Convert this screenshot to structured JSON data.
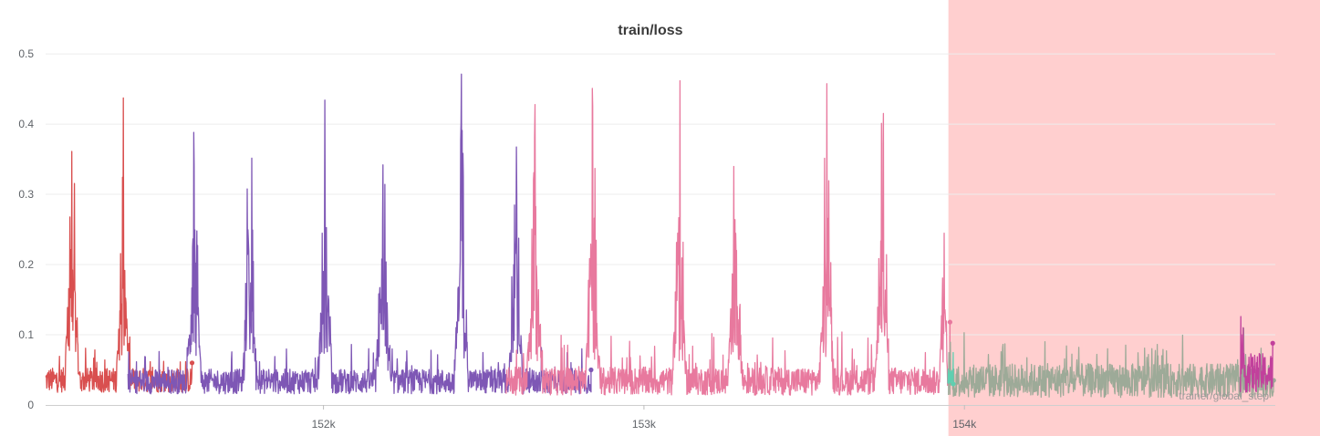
{
  "chart_data": {
    "type": "line",
    "title": "train/loss",
    "xlabel": "trainer/global_step",
    "ylabel": "",
    "xlim": [
      151133,
      154970
    ],
    "ylim": [
      0,
      0.53
    ],
    "x_ticks": [
      {
        "value": 152000,
        "label": "152k"
      },
      {
        "value": 153000,
        "label": "153k"
      },
      {
        "value": 154000,
        "label": "154k"
      }
    ],
    "y_ticks": [
      {
        "value": 0,
        "label": "0"
      },
      {
        "value": 0.1,
        "label": "0.1"
      },
      {
        "value": 0.2,
        "label": "0.2"
      },
      {
        "value": 0.3,
        "label": "0.3"
      },
      {
        "value": 0.4,
        "label": "0.4"
      },
      {
        "value": 0.5,
        "label": "0.5"
      }
    ],
    "grid": true,
    "highlight_region": {
      "x_start": 153950,
      "x_end": 155300,
      "color": "#ffcfcf"
    },
    "series": [
      {
        "color": "#d94f4f",
        "x_range": [
          151133,
          151590
        ],
        "baseline": 0.032,
        "noise": 0.022,
        "spikes": [
          {
            "center": 151215,
            "width": 22,
            "peak": 0.52
          },
          {
            "center": 151375,
            "width": 20,
            "peak": 0.5
          }
        ],
        "end_value": 0.06
      },
      {
        "color": "#7e57b5",
        "x_range": [
          151390,
          152835
        ],
        "baseline": 0.03,
        "noise": 0.022,
        "spikes": [
          {
            "center": 151595,
            "width": 22,
            "peak": 0.51
          },
          {
            "center": 151770,
            "width": 22,
            "peak": 0.515
          },
          {
            "center": 152005,
            "width": 22,
            "peak": 0.5
          },
          {
            "center": 152185,
            "width": 22,
            "peak": 0.48
          },
          {
            "center": 152430,
            "width": 22,
            "peak": 0.5
          },
          {
            "center": 152600,
            "width": 20,
            "peak": 0.51
          }
        ],
        "end_value": 0.05
      },
      {
        "color": "#e8799e",
        "x_range": [
          152570,
          153955
        ],
        "baseline": 0.03,
        "noise": 0.025,
        "spikes": [
          {
            "center": 152660,
            "width": 25,
            "peak": 0.51
          },
          {
            "center": 152840,
            "width": 22,
            "peak": 0.51
          },
          {
            "center": 153110,
            "width": 22,
            "peak": 0.525
          },
          {
            "center": 153285,
            "width": 22,
            "peak": 0.48
          },
          {
            "center": 153570,
            "width": 22,
            "peak": 0.51
          },
          {
            "center": 153745,
            "width": 22,
            "peak": 0.5
          },
          {
            "center": 153935,
            "width": 12,
            "peak": 0.505
          }
        ],
        "end_value": 0.118
      },
      {
        "color": "#9daa98",
        "x_range": [
          153950,
          154965
        ],
        "baseline": 0.03,
        "noise": 0.03,
        "spikes": [],
        "end_value": 0.035
      },
      {
        "color": "#5fcfb0",
        "x_range": [
          153948,
          153965
        ],
        "baseline": 0.035,
        "noise": 0.02,
        "spikes": [],
        "end_value": 0.03
      },
      {
        "color": "#c2409c",
        "x_range": [
          154860,
          154962
        ],
        "baseline": 0.04,
        "noise": 0.035,
        "spikes": [],
        "end_value": 0.088
      }
    ]
  }
}
